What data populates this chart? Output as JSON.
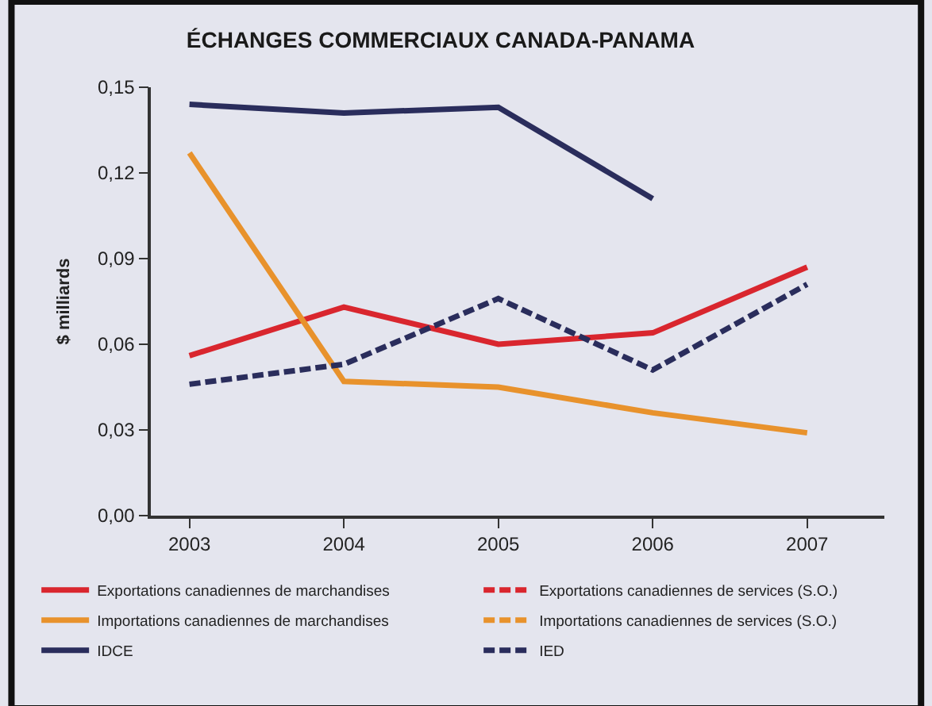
{
  "chart_data": {
    "type": "line",
    "title": "ÉCHANGES COMMERCIAUX CANADA-PANAMA",
    "ylabel": "$ milliards",
    "categories": [
      "2003",
      "2004",
      "2005",
      "2006",
      "2007"
    ],
    "ylim": [
      0,
      0.15
    ],
    "yticks": [
      {
        "value": 0,
        "label": "0,00"
      },
      {
        "value": 0.03,
        "label": "0,03"
      },
      {
        "value": 0.06,
        "label": "0,06"
      },
      {
        "value": 0.09,
        "label": "0,09"
      },
      {
        "value": 0.12,
        "label": "0,12"
      },
      {
        "value": 0.15,
        "label": "0,15"
      }
    ],
    "grid": false,
    "legend": "bottom",
    "marker": "none",
    "series": [
      {
        "name": "Exportations canadiennes de marchandises",
        "color": "#d9262e",
        "line_style": "solid",
        "values": [
          0.056,
          0.073,
          0.06,
          0.064,
          0.087
        ]
      },
      {
        "name": "Exportations canadiennes de services (S.O.)",
        "color": "#d9262e",
        "line_style": "dashed",
        "values": [
          null,
          null,
          null,
          null,
          null
        ]
      },
      {
        "name": "Importations canadiennes de marchandises",
        "color": "#e8922c",
        "line_style": "solid",
        "values": [
          0.127,
          0.047,
          0.045,
          0.036,
          0.029
        ]
      },
      {
        "name": "Importations canadiennes de services (S.O.)",
        "color": "#e8922c",
        "line_style": "dashed",
        "values": [
          null,
          null,
          null,
          null,
          null
        ]
      },
      {
        "name": "IDCE",
        "color": "#2a2d5c",
        "line_style": "solid",
        "values": [
          0.144,
          0.141,
          0.143,
          0.111,
          null
        ]
      },
      {
        "name": "IED",
        "color": "#2a2d5c",
        "line_style": "dashed",
        "values": [
          0.046,
          0.053,
          0.076,
          0.051,
          0.081
        ]
      }
    ]
  }
}
